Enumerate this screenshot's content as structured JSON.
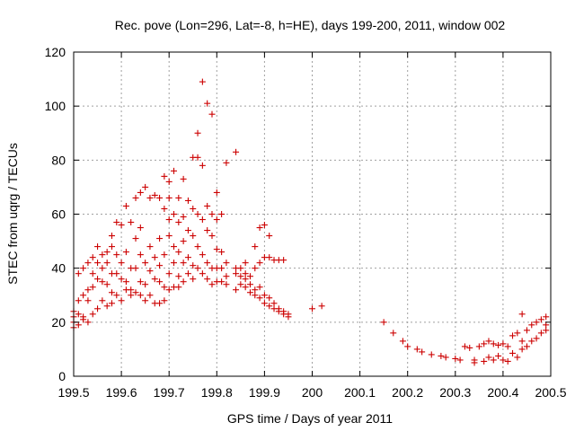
{
  "chart_data": {
    "type": "scatter",
    "title": "Rec. pove (Lon=296, Lat=-8, h=HE), days 199-200, 2011, window 002",
    "xlabel": "GPS time / Days of year 2011",
    "ylabel": "STEC from uqrg / TECUs",
    "xlim": [
      199.5,
      200.5
    ],
    "ylim": [
      0,
      120
    ],
    "xticks": [
      199.5,
      199.6,
      199.7,
      199.8,
      199.9,
      200.0,
      200.1,
      200.2,
      200.3,
      200.4,
      200.5
    ],
    "xtick_labels": [
      "199.5",
      "199.6",
      "199.7",
      "199.8",
      "199.9",
      "200",
      "200.1",
      "200.2",
      "200.3",
      "200.4",
      "200.5"
    ],
    "yticks": [
      0,
      20,
      40,
      60,
      80,
      100,
      120
    ],
    "ytick_labels": [
      "0",
      "20",
      "40",
      "60",
      "80",
      "100",
      "120"
    ],
    "grid": true,
    "marker": "+",
    "color": "#cc0000",
    "series": [
      {
        "name": "STEC",
        "points": [
          [
            199.5,
            24
          ],
          [
            199.5,
            22
          ],
          [
            199.5,
            20
          ],
          [
            199.5,
            18
          ],
          [
            199.51,
            38
          ],
          [
            199.51,
            28
          ],
          [
            199.51,
            23
          ],
          [
            199.51,
            19
          ],
          [
            199.52,
            40
          ],
          [
            199.52,
            30
          ],
          [
            199.52,
            22
          ],
          [
            199.52,
            21
          ],
          [
            199.53,
            42
          ],
          [
            199.53,
            32
          ],
          [
            199.53,
            28
          ],
          [
            199.53,
            20
          ],
          [
            199.54,
            44
          ],
          [
            199.54,
            38
          ],
          [
            199.54,
            33
          ],
          [
            199.54,
            23
          ],
          [
            199.55,
            48
          ],
          [
            199.55,
            42
          ],
          [
            199.55,
            36
          ],
          [
            199.55,
            25
          ],
          [
            199.56,
            45
          ],
          [
            199.56,
            40
          ],
          [
            199.56,
            35
          ],
          [
            199.56,
            28
          ],
          [
            199.57,
            46
          ],
          [
            199.57,
            42
          ],
          [
            199.57,
            34
          ],
          [
            199.57,
            26
          ],
          [
            199.58,
            52
          ],
          [
            199.58,
            48
          ],
          [
            199.58,
            38
          ],
          [
            199.58,
            31
          ],
          [
            199.58,
            27
          ],
          [
            199.59,
            57
          ],
          [
            199.59,
            45
          ],
          [
            199.59,
            38
          ],
          [
            199.59,
            30
          ],
          [
            199.6,
            56
          ],
          [
            199.6,
            42
          ],
          [
            199.6,
            36
          ],
          [
            199.6,
            28
          ],
          [
            199.61,
            63
          ],
          [
            199.61,
            46
          ],
          [
            199.61,
            35
          ],
          [
            199.61,
            32
          ],
          [
            199.62,
            57
          ],
          [
            199.62,
            40
          ],
          [
            199.62,
            32
          ],
          [
            199.62,
            30
          ],
          [
            199.63,
            66
          ],
          [
            199.63,
            51
          ],
          [
            199.63,
            40
          ],
          [
            199.63,
            31
          ],
          [
            199.64,
            68
          ],
          [
            199.64,
            55
          ],
          [
            199.64,
            45
          ],
          [
            199.64,
            35
          ],
          [
            199.64,
            30
          ],
          [
            199.65,
            70
          ],
          [
            199.65,
            42
          ],
          [
            199.65,
            34
          ],
          [
            199.65,
            28
          ],
          [
            199.66,
            66
          ],
          [
            199.66,
            48
          ],
          [
            199.66,
            39
          ],
          [
            199.66,
            30
          ],
          [
            199.67,
            67
          ],
          [
            199.67,
            44
          ],
          [
            199.67,
            36
          ],
          [
            199.67,
            27
          ],
          [
            199.68,
            66
          ],
          [
            199.68,
            51
          ],
          [
            199.68,
            41
          ],
          [
            199.68,
            35
          ],
          [
            199.68,
            27
          ],
          [
            199.69,
            74
          ],
          [
            199.69,
            62
          ],
          [
            199.69,
            45
          ],
          [
            199.69,
            33
          ],
          [
            199.69,
            28
          ],
          [
            199.7,
            72
          ],
          [
            199.7,
            66
          ],
          [
            199.7,
            58
          ],
          [
            199.7,
            52
          ],
          [
            199.7,
            38
          ],
          [
            199.7,
            32
          ],
          [
            199.71,
            76
          ],
          [
            199.71,
            60
          ],
          [
            199.71,
            48
          ],
          [
            199.71,
            42
          ],
          [
            199.71,
            33
          ],
          [
            199.72,
            66
          ],
          [
            199.72,
            57
          ],
          [
            199.72,
            46
          ],
          [
            199.72,
            37
          ],
          [
            199.72,
            33
          ],
          [
            199.73,
            73
          ],
          [
            199.73,
            59
          ],
          [
            199.73,
            50
          ],
          [
            199.73,
            42
          ],
          [
            199.73,
            35
          ],
          [
            199.74,
            65
          ],
          [
            199.74,
            54
          ],
          [
            199.74,
            44
          ],
          [
            199.74,
            38
          ],
          [
            199.75,
            81
          ],
          [
            199.75,
            62
          ],
          [
            199.75,
            52
          ],
          [
            199.75,
            41
          ],
          [
            199.75,
            36
          ],
          [
            199.76,
            90
          ],
          [
            199.76,
            81
          ],
          [
            199.76,
            60
          ],
          [
            199.76,
            48
          ],
          [
            199.76,
            40
          ],
          [
            199.77,
            109
          ],
          [
            199.77,
            78
          ],
          [
            199.77,
            58
          ],
          [
            199.77,
            45
          ],
          [
            199.77,
            38
          ],
          [
            199.78,
            101
          ],
          [
            199.78,
            63
          ],
          [
            199.78,
            54
          ],
          [
            199.78,
            42
          ],
          [
            199.78,
            36
          ],
          [
            199.79,
            97
          ],
          [
            199.79,
            60
          ],
          [
            199.79,
            52
          ],
          [
            199.79,
            40
          ],
          [
            199.79,
            34
          ],
          [
            199.8,
            68
          ],
          [
            199.8,
            58
          ],
          [
            199.8,
            47
          ],
          [
            199.8,
            40
          ],
          [
            199.8,
            35
          ],
          [
            199.81,
            60
          ],
          [
            199.81,
            46
          ],
          [
            199.81,
            40
          ],
          [
            199.81,
            35
          ],
          [
            199.82,
            79
          ],
          [
            199.82,
            42
          ],
          [
            199.82,
            37
          ],
          [
            199.82,
            34
          ],
          [
            199.84,
            83
          ],
          [
            199.84,
            40
          ],
          [
            199.84,
            38
          ],
          [
            199.84,
            32
          ],
          [
            199.85,
            40
          ],
          [
            199.85,
            37
          ],
          [
            199.85,
            34
          ],
          [
            199.86,
            42
          ],
          [
            199.86,
            38
          ],
          [
            199.86,
            33
          ],
          [
            199.86,
            36
          ],
          [
            199.87,
            37
          ],
          [
            199.87,
            34
          ],
          [
            199.87,
            31
          ],
          [
            199.88,
            48
          ],
          [
            199.88,
            40
          ],
          [
            199.88,
            32
          ],
          [
            199.88,
            30
          ],
          [
            199.89,
            55
          ],
          [
            199.89,
            42
          ],
          [
            199.89,
            33
          ],
          [
            199.89,
            29
          ],
          [
            199.9,
            56
          ],
          [
            199.9,
            44
          ],
          [
            199.9,
            30
          ],
          [
            199.9,
            27
          ],
          [
            199.91,
            52
          ],
          [
            199.91,
            44
          ],
          [
            199.91,
            29
          ],
          [
            199.91,
            26
          ],
          [
            199.92,
            43
          ],
          [
            199.92,
            27
          ],
          [
            199.92,
            25
          ],
          [
            199.93,
            43
          ],
          [
            199.93,
            25
          ],
          [
            199.93,
            24
          ],
          [
            199.94,
            43
          ],
          [
            199.94,
            24
          ],
          [
            199.94,
            23
          ],
          [
            199.95,
            23
          ],
          [
            199.95,
            22
          ],
          [
            200.0,
            25
          ],
          [
            200.02,
            26
          ],
          [
            200.15,
            20
          ],
          [
            200.17,
            16
          ],
          [
            200.19,
            13
          ],
          [
            200.2,
            11
          ],
          [
            200.22,
            10
          ],
          [
            200.23,
            9
          ],
          [
            200.25,
            8
          ],
          [
            200.27,
            7.5
          ],
          [
            200.28,
            7
          ],
          [
            200.3,
            6.5
          ],
          [
            200.31,
            6
          ],
          [
            200.32,
            11
          ],
          [
            200.33,
            10.5
          ],
          [
            200.34,
            6
          ],
          [
            200.34,
            5
          ],
          [
            200.35,
            11
          ],
          [
            200.36,
            12
          ],
          [
            200.36,
            5.5
          ],
          [
            200.37,
            13
          ],
          [
            200.37,
            7
          ],
          [
            200.38,
            12
          ],
          [
            200.38,
            6
          ],
          [
            200.39,
            11.5
          ],
          [
            200.39,
            7.5
          ],
          [
            200.4,
            12
          ],
          [
            200.4,
            6
          ],
          [
            200.41,
            11
          ],
          [
            200.41,
            5.5
          ],
          [
            200.42,
            15
          ],
          [
            200.42,
            8.5
          ],
          [
            200.43,
            16
          ],
          [
            200.43,
            7
          ],
          [
            200.44,
            23
          ],
          [
            200.44,
            13
          ],
          [
            200.44,
            10
          ],
          [
            200.45,
            17
          ],
          [
            200.45,
            11
          ],
          [
            200.46,
            19
          ],
          [
            200.46,
            13
          ],
          [
            200.47,
            20
          ],
          [
            200.47,
            14
          ],
          [
            200.48,
            21
          ],
          [
            200.48,
            16
          ],
          [
            200.49,
            22
          ],
          [
            200.49,
            17
          ],
          [
            200.49,
            19
          ]
        ]
      }
    ]
  }
}
